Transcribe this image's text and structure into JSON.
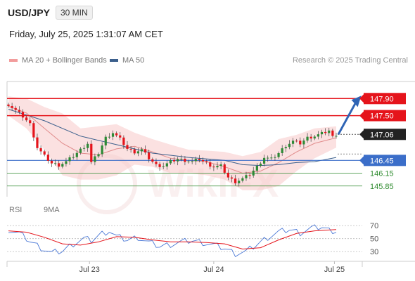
{
  "header": {
    "symbol": "USD/JPY",
    "interval": "30 MIN",
    "timestamp": "Friday, July 25, 2025 1:31:07 AM CET"
  },
  "legend": {
    "ma20_label": "MA 20 + Bollinger Bands",
    "ma50_label": "MA 50",
    "research_label": "Research © 2025 Trading Central",
    "rsi_label": "RSI",
    "ma9_label": "9MA"
  },
  "colors": {
    "resistance": "#e5141b",
    "pivot": "#3b6ec9",
    "support": "#2e8b2e",
    "current_bg": "#222222",
    "bull": "#2d8a35",
    "bear": "#e5141b",
    "bollinger": "#f7c9c9",
    "ma20": "#e08b8b",
    "ma50": "#3b5f8c",
    "arrow": "#2f64b5",
    "rsi": "#4a78d6",
    "rsi_ma": "#e5141b"
  },
  "chart_data": [
    {
      "type": "candlestick",
      "title": "USD/JPY",
      "interval": "30 MIN",
      "ylim": [
        145.5,
        148.3
      ],
      "x_ticks": [
        "Jul 23",
        "Jul 24",
        "Jul 25"
      ],
      "close_path": [
        [
          0,
          147.76
        ],
        [
          2,
          147.62
        ],
        [
          4,
          147.48
        ],
        [
          6,
          147.3
        ],
        [
          8,
          146.75
        ],
        [
          10,
          146.55
        ],
        [
          12,
          146.38
        ],
        [
          14,
          146.34
        ],
        [
          16,
          146.42
        ],
        [
          18,
          146.55
        ],
        [
          20,
          146.7
        ],
        [
          22,
          146.85
        ],
        [
          23,
          146.4
        ],
        [
          25,
          146.62
        ],
        [
          27,
          146.98
        ],
        [
          29,
          147.1
        ],
        [
          31,
          146.95
        ],
        [
          33,
          146.72
        ],
        [
          35,
          146.65
        ],
        [
          37,
          146.7
        ],
        [
          39,
          146.5
        ],
        [
          41,
          146.34
        ],
        [
          43,
          146.32
        ],
        [
          45,
          146.42
        ],
        [
          47,
          146.48
        ],
        [
          49,
          146.45
        ],
        [
          51,
          146.42
        ],
        [
          53,
          146.48
        ],
        [
          55,
          146.38
        ],
        [
          57,
          146.3
        ],
        [
          59,
          146.32
        ],
        [
          61,
          146.05
        ],
        [
          63,
          145.95
        ],
        [
          65,
          146.02
        ],
        [
          67,
          146.12
        ],
        [
          69,
          146.3
        ],
        [
          71,
          146.52
        ],
        [
          73,
          146.48
        ],
        [
          75,
          146.62
        ],
        [
          77,
          146.8
        ],
        [
          79,
          146.9
        ],
        [
          81,
          146.85
        ],
        [
          83,
          146.98
        ],
        [
          85,
          147.02
        ],
        [
          87,
          147.08
        ],
        [
          89,
          147.15
        ],
        [
          90,
          147.0
        ],
        [
          91,
          147.06
        ]
      ],
      "ma20": [
        [
          0,
          147.72
        ],
        [
          5,
          147.56
        ],
        [
          10,
          147.2
        ],
        [
          15,
          146.85
        ],
        [
          20,
          146.62
        ],
        [
          25,
          146.58
        ],
        [
          30,
          146.72
        ],
        [
          35,
          146.78
        ],
        [
          40,
          146.65
        ],
        [
          45,
          146.5
        ],
        [
          50,
          146.45
        ],
        [
          55,
          146.42
        ],
        [
          60,
          146.3
        ],
        [
          65,
          146.15
        ],
        [
          70,
          146.2
        ],
        [
          75,
          146.4
        ],
        [
          80,
          146.65
        ],
        [
          85,
          146.85
        ],
        [
          91,
          146.98
        ]
      ],
      "bollinger_upper": [
        [
          0,
          147.95
        ],
        [
          5,
          147.9
        ],
        [
          10,
          147.7
        ],
        [
          15,
          147.55
        ],
        [
          20,
          147.2
        ],
        [
          25,
          147.25
        ],
        [
          30,
          147.3
        ],
        [
          35,
          147.1
        ],
        [
          40,
          146.95
        ],
        [
          45,
          146.82
        ],
        [
          50,
          146.7
        ],
        [
          55,
          146.68
        ],
        [
          60,
          146.65
        ],
        [
          65,
          146.55
        ],
        [
          70,
          146.65
        ],
        [
          75,
          146.95
        ],
        [
          80,
          147.05
        ],
        [
          85,
          147.2
        ],
        [
          91,
          147.25
        ]
      ],
      "bollinger_lower": [
        [
          0,
          147.5
        ],
        [
          5,
          147.2
        ],
        [
          10,
          146.7
        ],
        [
          15,
          146.1
        ],
        [
          20,
          146.0
        ],
        [
          25,
          146.0
        ],
        [
          30,
          146.1
        ],
        [
          35,
          146.35
        ],
        [
          40,
          146.3
        ],
        [
          45,
          146.15
        ],
        [
          50,
          146.15
        ],
        [
          55,
          146.1
        ],
        [
          60,
          146.0
        ],
        [
          65,
          145.75
        ],
        [
          70,
          145.75
        ],
        [
          75,
          145.85
        ],
        [
          80,
          146.2
        ],
        [
          85,
          146.5
        ],
        [
          91,
          146.75
        ]
      ],
      "ma50": [
        [
          0,
          147.65
        ],
        [
          10,
          147.38
        ],
        [
          20,
          147.02
        ],
        [
          30,
          146.82
        ],
        [
          40,
          146.62
        ],
        [
          50,
          146.52
        ],
        [
          60,
          146.45
        ],
        [
          65,
          146.35
        ],
        [
          70,
          146.33
        ],
        [
          75,
          146.35
        ],
        [
          80,
          146.4
        ],
        [
          85,
          146.42
        ],
        [
          91,
          146.52
        ]
      ],
      "levels": [
        {
          "value": 147.9,
          "label": "147.90",
          "kind": "resistance",
          "tag": "boxed"
        },
        {
          "value": 147.5,
          "label": "147.50",
          "kind": "resistance",
          "tag": "boxed"
        },
        {
          "value": 147.06,
          "label": "147.06",
          "kind": "current",
          "tag": "boxed"
        },
        {
          "value": 146.45,
          "label": "146.45",
          "kind": "pivot",
          "tag": "boxed"
        },
        {
          "value": 146.15,
          "label": "146.15",
          "kind": "support",
          "tag": "text"
        },
        {
          "value": 145.85,
          "label": "145.85",
          "kind": "support",
          "tag": "text"
        }
      ],
      "arrow": {
        "from": [
          91,
          147.06
        ],
        "to": [
          96,
          147.9
        ]
      }
    },
    {
      "type": "line",
      "title": "RSI",
      "ylim": [
        15,
        80
      ],
      "y_ticks": [
        30,
        50,
        70
      ],
      "x_ticks": [
        "Jul 23",
        "Jul 24",
        "Jul 25"
      ],
      "series": [
        {
          "name": "RSI",
          "values": [
            [
              0,
              64
            ],
            [
              3,
              58
            ],
            [
              6,
              46
            ],
            [
              9,
              36
            ],
            [
              12,
              28
            ],
            [
              15,
              31
            ],
            [
              18,
              42
            ],
            [
              21,
              50
            ],
            [
              23,
              47
            ],
            [
              26,
              58
            ],
            [
              28,
              62
            ],
            [
              30,
              53
            ],
            [
              33,
              48
            ],
            [
              36,
              52
            ],
            [
              39,
              44
            ],
            [
              42,
              38
            ],
            [
              45,
              41
            ],
            [
              48,
              45
            ],
            [
              51,
              47
            ],
            [
              54,
              44
            ],
            [
              57,
              40
            ],
            [
              60,
              35
            ],
            [
              63,
              27
            ],
            [
              66,
              30
            ],
            [
              69,
              41
            ],
            [
              72,
              52
            ],
            [
              75,
              60
            ],
            [
              78,
              64
            ],
            [
              81,
              59
            ],
            [
              84,
              66
            ],
            [
              87,
              68
            ],
            [
              89,
              63
            ],
            [
              91,
              62
            ]
          ]
        },
        {
          "name": "9MA",
          "values": [
            [
              0,
              62
            ],
            [
              5,
              60
            ],
            [
              10,
              52
            ],
            [
              15,
              42
            ],
            [
              20,
              40
            ],
            [
              25,
              45
            ],
            [
              30,
              53
            ],
            [
              35,
              52
            ],
            [
              40,
              48
            ],
            [
              45,
              45
            ],
            [
              50,
              45
            ],
            [
              55,
              44
            ],
            [
              60,
              42
            ],
            [
              65,
              34
            ],
            [
              70,
              36
            ],
            [
              75,
              48
            ],
            [
              80,
              58
            ],
            [
              85,
              62
            ],
            [
              91,
              64
            ]
          ]
        }
      ]
    }
  ]
}
